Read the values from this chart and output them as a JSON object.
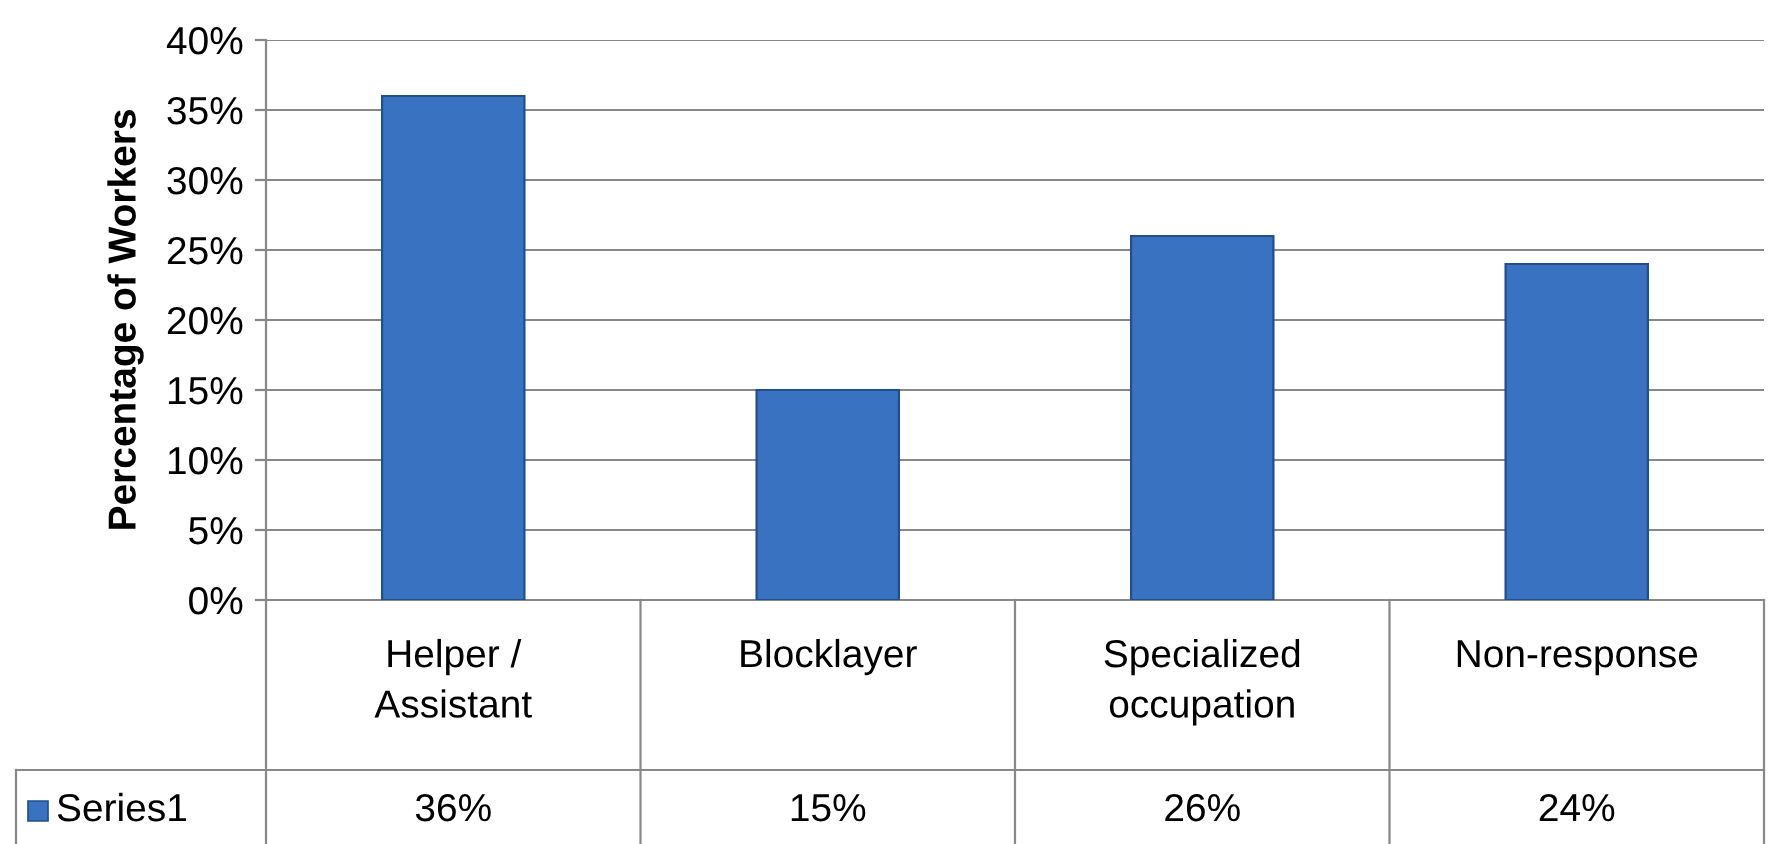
{
  "chart_data": {
    "type": "bar",
    "ylabel": "Percentage of Workers",
    "categories": [
      "Helper /\nAssistant",
      "Blocklayer",
      "Specialized\noccupation",
      "Non-response"
    ],
    "series": [
      {
        "name": "Series1",
        "color": "#3a72c2",
        "values": [
          36,
          15,
          26,
          24
        ],
        "value_labels": [
          "36%",
          "15%",
          "26%",
          "24%"
        ]
      }
    ],
    "ylim": [
      0,
      40
    ],
    "yticks": [
      {
        "value": 0,
        "label": "0%"
      },
      {
        "value": 5,
        "label": "5%"
      },
      {
        "value": 10,
        "label": "10%"
      },
      {
        "value": 15,
        "label": "15%"
      },
      {
        "value": 20,
        "label": "20%"
      },
      {
        "value": 25,
        "label": "25%"
      },
      {
        "value": 30,
        "label": "30%"
      },
      {
        "value": 35,
        "label": "35%"
      },
      {
        "value": 40,
        "label": "40%"
      }
    ],
    "grid": "y",
    "legend": "bottom"
  }
}
